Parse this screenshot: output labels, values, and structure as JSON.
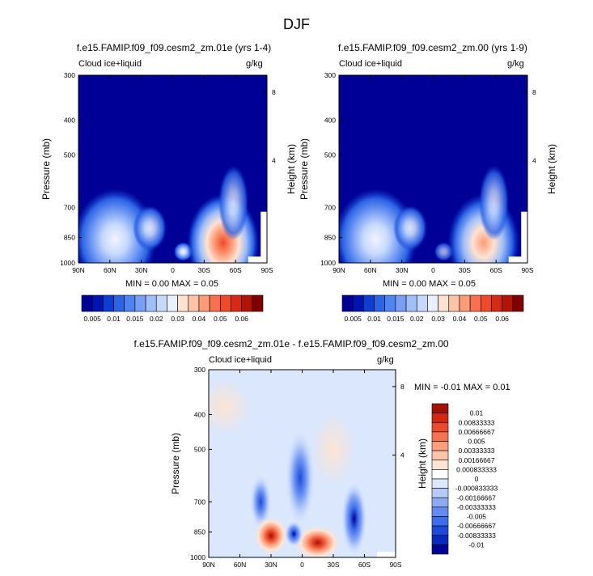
{
  "main_title": "DJF",
  "panels": [
    {
      "title": "f.e15.FAMIP.f09_f09.cesm2_zm.01e (yrs 1-4)",
      "var_label": "Cloud ice+liquid",
      "units": "g/kg",
      "ylabel_left": "Pressure (mb)",
      "ylabel_right": "Height (km)",
      "stats": "MIN =   0.00   MAX =   0.05"
    },
    {
      "title": "f.e15.FAMIP.f09_f09.cesm2_zm.00 (yrs 1-9)",
      "var_label": "Cloud ice+liquid",
      "units": "g/kg",
      "ylabel_left": "Pressure (mb)",
      "ylabel_right": "Height (km)",
      "stats": "MIN =   0.00   MAX =   0.05"
    },
    {
      "title": "f.e15.FAMIP.f09_f09.cesm2_zm.01e - f.e15.FAMIP.f09_f09.cesm2_zm.00",
      "var_label": "Cloud ice+liquid",
      "units": "g/kg",
      "ylabel_left": "Pressure (mb)",
      "ylabel_right": "Height (km)",
      "stats": "MIN =  -0.01   MAX =   0.01"
    }
  ],
  "colorbar_abs": {
    "colors": [
      "#000096",
      "#0014b4",
      "#0f3cd2",
      "#2d64e6",
      "#5084f0",
      "#789ff5",
      "#a0bff8",
      "#c6d9fb",
      "#e9f1ff",
      "#fde2d2",
      "#fcc3a8",
      "#fa9c78",
      "#f87050",
      "#f04a2a",
      "#d72a14",
      "#b41408",
      "#800000"
    ],
    "labels": [
      "0.005",
      "0.01",
      "0.015",
      "0.02",
      "0.03",
      "0.04",
      "0.05",
      "0.06"
    ]
  },
  "colorbar_diff": {
    "colors": [
      "#000096",
      "#0a28be",
      "#1e4bdc",
      "#3c6eeb",
      "#648cf0",
      "#8cabf5",
      "#b4cbf9",
      "#dae7fd",
      "#ffffff",
      "#fde4d4",
      "#fcc5aa",
      "#fa9f7c",
      "#f57252",
      "#eb4a2c",
      "#d22814",
      "#a01206"
    ],
    "labels": [
      "0.01",
      "0.00833333",
      "0.00666667",
      "0.005",
      "0.00333333",
      "0.00166667",
      "0.000833333",
      "0",
      "-0.000833333",
      "-0.00166667",
      "-0.00333333",
      "-0.005",
      "-0.00666667",
      "-0.00833333",
      "-0.01"
    ]
  },
  "chart_data": [
    {
      "type": "heatmap",
      "title": "f.e15.FAMIP.f09_f09.cesm2_zm.01e (yrs 1-4)",
      "variable": "Cloud ice+liquid",
      "units": "g/kg",
      "x_ticks": [
        "90N",
        "60N",
        "30N",
        "0",
        "30S",
        "60S",
        "90S"
      ],
      "y_ticks_pressure": [
        "300",
        "400",
        "500",
        "700",
        "850",
        "1000"
      ],
      "y_ticks_height": [
        "8",
        "4"
      ],
      "ylabel": "Pressure (mb)",
      "ylabel_right": "Height (km)",
      "min": 0.0,
      "max": 0.05,
      "features": [
        {
          "lat": 60,
          "p": 830,
          "value": 0.02
        },
        {
          "lat": 25,
          "p": 830,
          "value": 0.015
        },
        {
          "lat": -8,
          "p": 920,
          "value": 0.02
        },
        {
          "lat": -50,
          "p": 870,
          "value": 0.05
        }
      ]
    },
    {
      "type": "heatmap",
      "title": "f.e15.FAMIP.f09_f09.cesm2_zm.00 (yrs 1-9)",
      "variable": "Cloud ice+liquid",
      "units": "g/kg",
      "x_ticks": [
        "90N",
        "60N",
        "30N",
        "0",
        "30S",
        "60S",
        "90S"
      ],
      "y_ticks_pressure": [
        "300",
        "400",
        "500",
        "700",
        "850",
        "1000"
      ],
      "y_ticks_height": [
        "8",
        "4"
      ],
      "ylabel": "Pressure (mb)",
      "ylabel_right": "Height (km)",
      "min": 0.0,
      "max": 0.05,
      "features": [
        {
          "lat": 60,
          "p": 830,
          "value": 0.02
        },
        {
          "lat": 25,
          "p": 830,
          "value": 0.015
        },
        {
          "lat": -8,
          "p": 920,
          "value": 0.01
        },
        {
          "lat": -50,
          "p": 850,
          "value": 0.04
        }
      ]
    },
    {
      "type": "heatmap",
      "title": "f.e15.FAMIP.f09_f09.cesm2_zm.01e - f.e15.FAMIP.f09_f09.cesm2_zm.00",
      "variable": "Cloud ice+liquid",
      "units": "g/kg",
      "x_ticks": [
        "90N",
        "60N",
        "30N",
        "0",
        "30S",
        "60S",
        "90S"
      ],
      "y_ticks_pressure": [
        "300",
        "400",
        "500",
        "700",
        "850",
        "1000"
      ],
      "y_ticks_height": [
        "8",
        "4"
      ],
      "ylabel": "Pressure (mb)",
      "ylabel_right": "Height (km)",
      "min": -0.01,
      "max": 0.01,
      "features": [
        {
          "lat": 30,
          "p": 870,
          "value": 0.01
        },
        {
          "lat": -15,
          "p": 900,
          "value": 0.01
        },
        {
          "lat": 10,
          "p": 870,
          "value": -0.008
        },
        {
          "lat": 0,
          "p": 550,
          "value": -0.005
        },
        {
          "lat": -50,
          "p": 780,
          "value": -0.006
        }
      ]
    }
  ]
}
